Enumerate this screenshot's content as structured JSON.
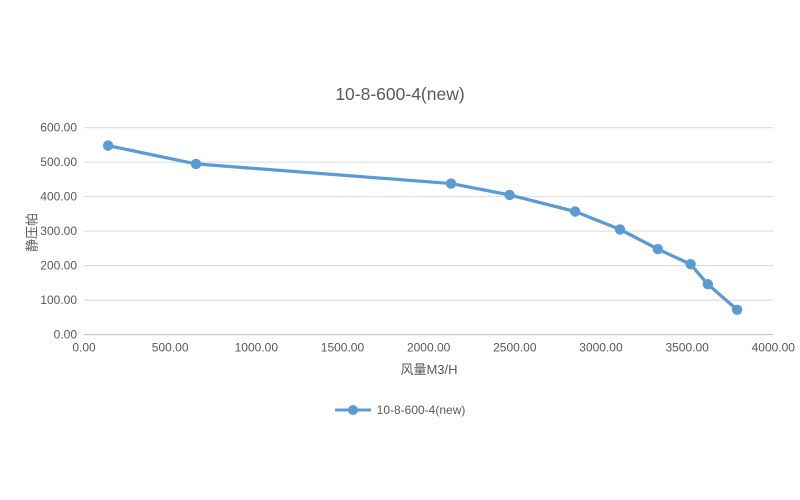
{
  "title": "10-8-600-4(new)",
  "colors": {
    "series": "#5B9BD5",
    "text": "#595959",
    "tick_text": "#595959",
    "gridline": "#D9D9D9",
    "axis_line": "#BFBFBF",
    "background": "#FFFFFF"
  },
  "legend": {
    "label": "10-8-600-4(new)"
  },
  "chart_data": {
    "type": "line",
    "title": "10-8-600-4(new)",
    "xlabel": "风量M3/H",
    "ylabel": "静压帕",
    "xlim": [
      0,
      4000
    ],
    "ylim": [
      0,
      600
    ],
    "x_tick_step": 500,
    "y_tick_step": 100,
    "tick_format_decimals": 2,
    "grid": "horizontal-only",
    "legend_position": "bottom-center",
    "marker": "circle",
    "series": [
      {
        "name": "10-8-600-4(new)",
        "x": [
          140,
          650,
          2130,
          2470,
          2850,
          3110,
          3330,
          3520,
          3620,
          3790
        ],
        "y": [
          548,
          495,
          438,
          405,
          357,
          305,
          248,
          204,
          146,
          72
        ]
      }
    ]
  }
}
